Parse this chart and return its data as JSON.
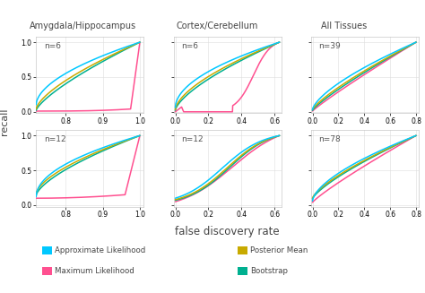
{
  "col_titles": [
    "Amygdala/Hippocampus",
    "Cortex/Cerebellum",
    "All Tissues"
  ],
  "row_labels": [
    [
      "n=6",
      "n=6",
      "n=39"
    ],
    [
      "n=12",
      "n=12",
      "n=78"
    ]
  ],
  "colors": {
    "Approximate Likelihood": "#00C8FF",
    "Posterior Mean": "#C8AA00",
    "Maximum Likelihood": "#FF5090",
    "Bootstrap": "#00B090"
  },
  "legend_labels": [
    "Approximate Likelihood",
    "Posterior Mean",
    "Maximum Likelihood",
    "Bootstrap"
  ],
  "legend_colors": [
    "#00C8FF",
    "#C8AA00",
    "#FF5090",
    "#00B090"
  ],
  "xlabel": "false discovery rate",
  "ylabel": "recall",
  "grid_color": "#dddddd",
  "subplot_configs": [
    {
      "row": 0,
      "col": 0,
      "xlim": [
        0.72,
        1.01
      ],
      "xticks": [
        0.8,
        0.9,
        1.0
      ]
    },
    {
      "row": 0,
      "col": 1,
      "xlim": [
        -0.01,
        0.64
      ],
      "xticks": [
        0.0,
        0.2,
        0.4,
        0.6
      ]
    },
    {
      "row": 0,
      "col": 2,
      "xlim": [
        -0.01,
        0.82
      ],
      "xticks": [
        0.0,
        0.2,
        0.4,
        0.6,
        0.8
      ]
    },
    {
      "row": 1,
      "col": 0,
      "xlim": [
        0.72,
        1.01
      ],
      "xticks": [
        0.8,
        0.9,
        1.0
      ]
    },
    {
      "row": 1,
      "col": 1,
      "xlim": [
        -0.01,
        0.64
      ],
      "xticks": [
        0.0,
        0.2,
        0.4,
        0.6
      ]
    },
    {
      "row": 1,
      "col": 2,
      "xlim": [
        -0.01,
        0.82
      ],
      "xticks": [
        0.0,
        0.2,
        0.4,
        0.6,
        0.8
      ]
    }
  ],
  "ylim": [
    -0.02,
    1.08
  ],
  "yticks": [
    0.0,
    0.5,
    1.0
  ]
}
